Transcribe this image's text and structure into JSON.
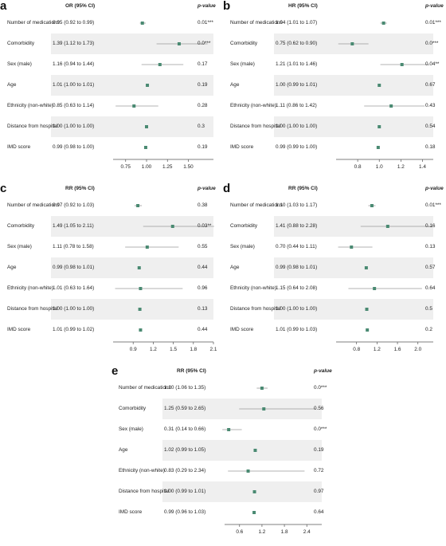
{
  "chart_data": [
    {
      "type": "forest",
      "panel": "a",
      "effect_header": "OR (95% CI)",
      "p_header": "p-value",
      "xlim": [
        0.6,
        1.8
      ],
      "ticks": [
        "0.75",
        "1.00",
        "1.25",
        "1.50"
      ],
      "rows": [
        {
          "label": "Number of medications",
          "ci_text": "0.95 (0.92 to 0.99)",
          "p": "0.01***",
          "est": 0.95,
          "lo": 0.92,
          "hi": 0.99
        },
        {
          "label": "Comorbidity",
          "ci_text": "1.39 (1.12 to 1.73)",
          "p": "0.0***",
          "est": 1.39,
          "lo": 1.12,
          "hi": 1.73
        },
        {
          "label": "Sex (male)",
          "ci_text": "1.16 (0.94 to 1.44)",
          "p": "0.17",
          "est": 1.16,
          "lo": 0.94,
          "hi": 1.44
        },
        {
          "label": "Age",
          "ci_text": "1.01 (1.00 to 1.01)",
          "p": "0.19",
          "est": 1.01,
          "lo": 1.0,
          "hi": 1.01
        },
        {
          "label": "Ethnicity (non-white)",
          "ci_text": "0.85 (0.63 to 1.14)",
          "p": "0.28",
          "est": 0.85,
          "lo": 0.63,
          "hi": 1.14
        },
        {
          "label": "Distance from hospital",
          "ci_text": "1.00 (1.00 to 1.00)",
          "p": "0.3",
          "est": 1.0,
          "lo": 1.0,
          "hi": 1.0
        },
        {
          "label": "IMD score",
          "ci_text": "0.99 (0.98 to 1.00)",
          "p": "0.19",
          "est": 0.99,
          "lo": 0.98,
          "hi": 1.0
        }
      ]
    },
    {
      "type": "forest",
      "panel": "b",
      "effect_header": "HR (95% CI)",
      "p_header": "p-value",
      "xlim": [
        0.6,
        1.5
      ],
      "ticks": [
        "0.8",
        "1.0",
        "1.2",
        "1.4"
      ],
      "rows": [
        {
          "label": "Number of medications",
          "ci_text": "1.04 (1.01 to 1.07)",
          "p": "0.01***",
          "est": 1.04,
          "lo": 1.01,
          "hi": 1.07
        },
        {
          "label": "Comorbidity",
          "ci_text": "0.75 (0.62 to 0.90)",
          "p": "0.0***",
          "est": 0.75,
          "lo": 0.62,
          "hi": 0.9
        },
        {
          "label": "Sex (male)",
          "ci_text": "1.21 (1.01 to 1.46)",
          "p": "0.04**",
          "est": 1.21,
          "lo": 1.01,
          "hi": 1.46
        },
        {
          "label": "Age",
          "ci_text": "1.00 (0.99 to 1.01)",
          "p": "0.67",
          "est": 1.0,
          "lo": 0.99,
          "hi": 1.01
        },
        {
          "label": "Ethnicity (non-white)",
          "ci_text": "1.11 (0.86 to 1.42)",
          "p": "0.43",
          "est": 1.11,
          "lo": 0.86,
          "hi": 1.42
        },
        {
          "label": "Distance from hospital",
          "ci_text": "1.00 (1.00 to 1.00)",
          "p": "0.54",
          "est": 1.0,
          "lo": 1.0,
          "hi": 1.0
        },
        {
          "label": "IMD score",
          "ci_text": "0.99 (0.99 to 1.00)",
          "p": "0.18",
          "est": 0.99,
          "lo": 0.99,
          "hi": 1.0
        }
      ]
    },
    {
      "type": "forest",
      "panel": "c",
      "effect_header": "RR (95% CI)",
      "p_header": "p-value",
      "xlim": [
        0.6,
        2.1
      ],
      "ticks": [
        "0.9",
        "1.2",
        "1.5",
        "1.8",
        "2.1"
      ],
      "rows": [
        {
          "label": "Number of medications",
          "ci_text": "0.97 (0.92 to 1.03)",
          "p": "0.38",
          "est": 0.97,
          "lo": 0.92,
          "hi": 1.03
        },
        {
          "label": "Comorbidity",
          "ci_text": "1.49 (1.05 to 2.11)",
          "p": "0.03**",
          "est": 1.49,
          "lo": 1.05,
          "hi": 2.11
        },
        {
          "label": "Sex (male)",
          "ci_text": "1.11 (0.78 to 1.58)",
          "p": "0.55",
          "est": 1.11,
          "lo": 0.78,
          "hi": 1.58
        },
        {
          "label": "Age",
          "ci_text": "0.99 (0.98 to 1.01)",
          "p": "0.44",
          "est": 0.99,
          "lo": 0.98,
          "hi": 1.01
        },
        {
          "label": "Ethnicity (non-white)",
          "ci_text": "1.01 (0.63 to 1.64)",
          "p": "0.96",
          "est": 1.01,
          "lo": 0.63,
          "hi": 1.64
        },
        {
          "label": "Distance from hospital",
          "ci_text": "1.00 (1.00 to 1.00)",
          "p": "0.13",
          "est": 1.0,
          "lo": 1.0,
          "hi": 1.0
        },
        {
          "label": "IMD score",
          "ci_text": "1.01 (0.99 to 1.02)",
          "p": "0.44",
          "est": 1.01,
          "lo": 0.99,
          "hi": 1.02
        }
      ]
    },
    {
      "type": "forest",
      "panel": "d",
      "effect_header": "RR (95% CI)",
      "p_header": "p-value",
      "xlim": [
        0.4,
        2.3
      ],
      "ticks": [
        "0.8",
        "1.2",
        "1.6",
        "2.0"
      ],
      "rows": [
        {
          "label": "Number of medications",
          "ci_text": "1.10 (1.03 to 1.17)",
          "p": "0.01***",
          "est": 1.1,
          "lo": 1.03,
          "hi": 1.17
        },
        {
          "label": "Comorbidity",
          "ci_text": "1.41 (0.88 to 2.28)",
          "p": "0.16",
          "est": 1.41,
          "lo": 0.88,
          "hi": 2.28
        },
        {
          "label": "Sex (male)",
          "ci_text": "0.70 (0.44 to 1.11)",
          "p": "0.13",
          "est": 0.7,
          "lo": 0.44,
          "hi": 1.11
        },
        {
          "label": "Age",
          "ci_text": "0.99 (0.98 to 1.01)",
          "p": "0.57",
          "est": 0.99,
          "lo": 0.98,
          "hi": 1.01
        },
        {
          "label": "Ethnicity (non-white)",
          "ci_text": "1.15 (0.64 to 2.08)",
          "p": "0.64",
          "est": 1.15,
          "lo": 0.64,
          "hi": 2.08
        },
        {
          "label": "Distance from hospital",
          "ci_text": "1.00 (1.00 to 1.00)",
          "p": "0.5",
          "est": 1.0,
          "lo": 1.0,
          "hi": 1.0
        },
        {
          "label": "IMD score",
          "ci_text": "1.01 (0.99 to 1.03)",
          "p": "0.2",
          "est": 1.01,
          "lo": 0.99,
          "hi": 1.03
        }
      ]
    },
    {
      "type": "forest",
      "panel": "e",
      "effect_header": "RR (95% CI)",
      "p_header": "p-value",
      "xlim": [
        0.2,
        2.8
      ],
      "ticks": [
        "0.6",
        "1.2",
        "1.8",
        "2.4"
      ],
      "rows": [
        {
          "label": "Number of medications",
          "ci_text": "1.20 (1.06 to 1.35)",
          "p": "0.0***",
          "est": 1.2,
          "lo": 1.06,
          "hi": 1.35
        },
        {
          "label": "Comorbidity",
          "ci_text": "1.25 (0.59 to 2.65)",
          "p": "0.56",
          "est": 1.25,
          "lo": 0.59,
          "hi": 2.65
        },
        {
          "label": "Sex (male)",
          "ci_text": "0.31 (0.14 to 0.66)",
          "p": "0.0***",
          "est": 0.31,
          "lo": 0.14,
          "hi": 0.66
        },
        {
          "label": "Age",
          "ci_text": "1.02 (0.99 to 1.05)",
          "p": "0.19",
          "est": 1.02,
          "lo": 0.99,
          "hi": 1.05
        },
        {
          "label": "Ethnicity (non-white)",
          "ci_text": "0.83 (0.29 to 2.34)",
          "p": "0.72",
          "est": 0.83,
          "lo": 0.29,
          "hi": 2.34
        },
        {
          "label": "Distance from hospital",
          "ci_text": "1.00 (0.99 to 1.01)",
          "p": "0.97",
          "est": 1.0,
          "lo": 0.99,
          "hi": 1.01
        },
        {
          "label": "IMD score",
          "ci_text": "0.99 (0.96 to 1.03)",
          "p": "0.64",
          "est": 0.99,
          "lo": 0.96,
          "hi": 1.03
        }
      ]
    }
  ],
  "colors": {
    "point": "#4a8a72",
    "ci_line": "#9a9a9a",
    "shade": "#efefef",
    "axis": "#555555",
    "text": "#222222"
  }
}
